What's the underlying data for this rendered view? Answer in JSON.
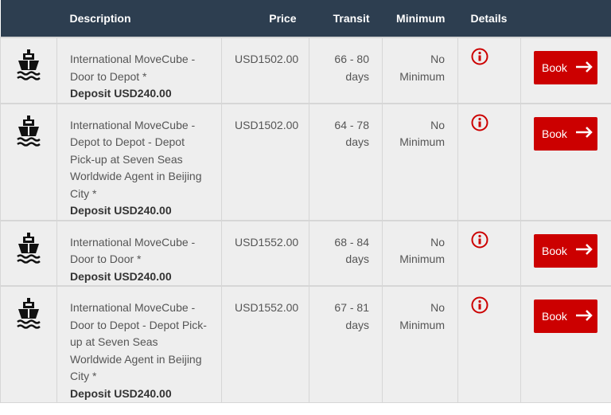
{
  "columns": {
    "description": "Description",
    "price": "Price",
    "transit": "Transit",
    "minimum": "Minimum",
    "details": "Details"
  },
  "accent": "#cc0000",
  "rows": [
    {
      "icon": "ship-icon",
      "description": "International MoveCube - Door to Depot *",
      "deposit": "Deposit USD240.00",
      "price": "USD1502.00",
      "transit": "66 - 80 days",
      "minimum": "No Minimum",
      "book": "Book"
    },
    {
      "icon": "ship-icon",
      "description": "International MoveCube - Depot to Depot - Depot Pick-up at Seven Seas Worldwide Agent in Beijing City *",
      "deposit": "Deposit USD240.00",
      "price": "USD1502.00",
      "transit": "64 - 78 days",
      "minimum": "No Minimum",
      "book": "Book"
    },
    {
      "icon": "ship-icon",
      "description": "International MoveCube - Door to Door *",
      "deposit": "Deposit USD240.00",
      "price": "USD1552.00",
      "transit": "68 - 84 days",
      "minimum": "No Minimum",
      "book": "Book"
    },
    {
      "icon": "ship-icon",
      "description": "International MoveCube - Door to Depot - Depot Pick-up at Seven Seas Worldwide Agent in Beijing City *",
      "deposit": "Deposit USD240.00",
      "price": "USD1552.00",
      "transit": "67 - 81 days",
      "minimum": "No Minimum",
      "book": "Book"
    }
  ]
}
